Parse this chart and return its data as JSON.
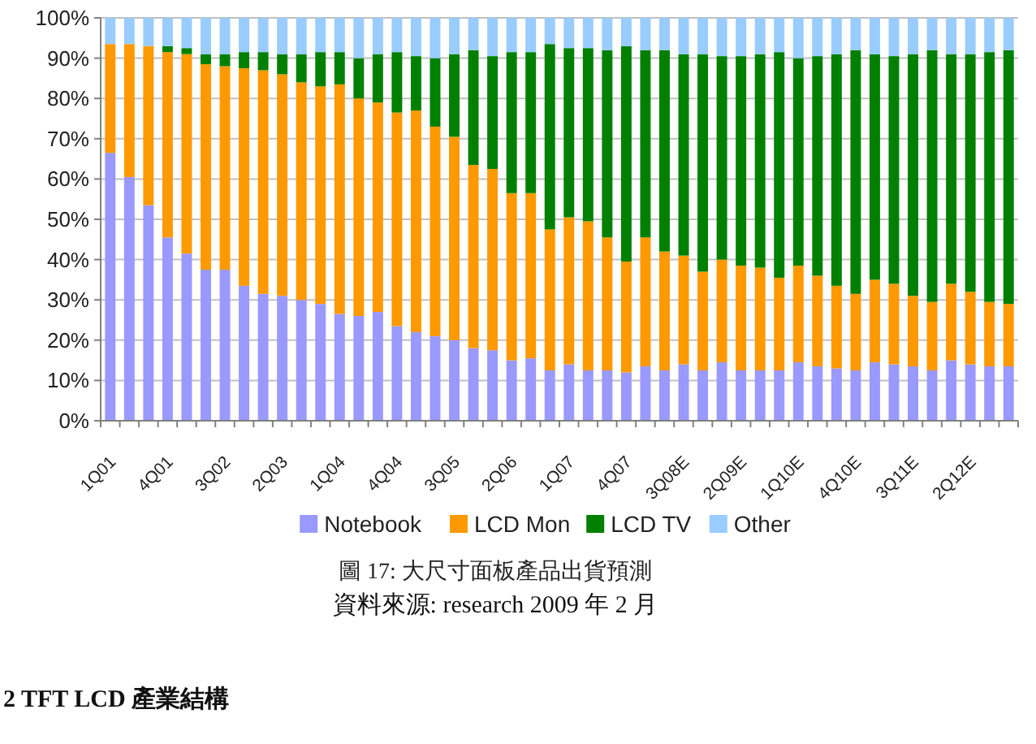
{
  "chart_data": {
    "type": "bar",
    "stacked": true,
    "title": "圖 17: 大尺寸面板產品出貨預測",
    "annotations": [
      "資料來源: research 2009 年 2 月",
      "2 TFT LCD 產業結構"
    ],
    "categories": [
      "1Q01",
      null,
      null,
      "4Q01",
      null,
      null,
      "3Q02",
      null,
      null,
      "2Q03",
      null,
      null,
      "1Q04",
      null,
      null,
      "4Q04",
      null,
      null,
      "3Q05",
      null,
      null,
      "2Q06",
      null,
      null,
      "1Q07",
      null,
      null,
      "4Q07",
      null,
      null,
      "3Q08E",
      null,
      null,
      "2Q09E",
      null,
      null,
      "1Q10E",
      null,
      null,
      "4Q10E",
      null,
      null,
      "3Q11E",
      null,
      null,
      "2Q12E",
      null,
      null
    ],
    "series": [
      {
        "name": "Notebook",
        "color": "#9999ff",
        "values": [
          66.5,
          60.5,
          53.5,
          45.5,
          41.5,
          37.5,
          37.5,
          33.5,
          31.5,
          31,
          30,
          29,
          26.5,
          26,
          27,
          23.5,
          22,
          21,
          20,
          18,
          17.5,
          15,
          15.5,
          12.5,
          14,
          12.5,
          12.5,
          12,
          13.5,
          12.5,
          14,
          12.5,
          14.5,
          12.5,
          12.5,
          12.5,
          14.5,
          13.5,
          13,
          12.5,
          14.5,
          14,
          13.5,
          12.5,
          15,
          14,
          13.5,
          13.5
        ]
      },
      {
        "name": "LCD Mon",
        "color": "#ff9900",
        "values": [
          27,
          33,
          39.5,
          46,
          49.5,
          51,
          50.5,
          54,
          55.5,
          55,
          54,
          54,
          57,
          54,
          52,
          53,
          55,
          52,
          50.5,
          45.5,
          45,
          41.5,
          41,
          35,
          36.5,
          37,
          33,
          27.5,
          32,
          29.5,
          27,
          24.5,
          25.5,
          26,
          25.5,
          23,
          24,
          22.5,
          20.5,
          19,
          20.5,
          20,
          17.5,
          17,
          19,
          18,
          16,
          15.5
        ]
      },
      {
        "name": "LCD TV",
        "color": "#008000",
        "values": [
          0,
          0,
          0,
          1.5,
          1.5,
          2.5,
          3,
          4,
          4.5,
          5,
          7,
          8.5,
          8,
          10,
          12,
          15,
          13.5,
          17,
          20.5,
          28.5,
          28,
          35,
          35,
          46,
          42,
          43,
          46.5,
          53.5,
          46.5,
          50,
          50,
          54,
          50.5,
          52,
          53,
          56,
          51.5,
          54.5,
          57.5,
          60.5,
          56,
          56.5,
          60,
          62.5,
          57,
          59,
          62,
          63
        ]
      },
      {
        "name": "Other",
        "color": "#99ccff",
        "values": [
          6.5,
          6.5,
          7,
          7,
          7.5,
          9,
          9,
          8.5,
          8.5,
          9,
          9,
          8.5,
          8.5,
          10,
          9,
          8.5,
          9.5,
          10,
          9,
          8,
          9.5,
          8.5,
          8.5,
          6.5,
          7.5,
          7.5,
          8,
          7,
          8,
          8,
          9,
          9,
          9.5,
          9.5,
          9,
          8.5,
          10,
          9.5,
          9,
          8,
          9,
          9.5,
          9,
          8,
          9,
          9,
          8.5,
          8
        ]
      }
    ],
    "ylim": [
      0,
      100
    ],
    "yticks": [
      {
        "value": 0,
        "label": "0%"
      },
      {
        "value": 10,
        "label": "10%"
      },
      {
        "value": 20,
        "label": "20%"
      },
      {
        "value": 30,
        "label": "30%"
      },
      {
        "value": 40,
        "label": "40%"
      },
      {
        "value": 50,
        "label": "50%"
      },
      {
        "value": 60,
        "label": "60%"
      },
      {
        "value": 70,
        "label": "70%"
      },
      {
        "value": 80,
        "label": "80%"
      },
      {
        "value": 90,
        "label": "90%"
      },
      {
        "value": 100,
        "label": "100%"
      }
    ],
    "grid": "y",
    "legend": "bottom"
  }
}
